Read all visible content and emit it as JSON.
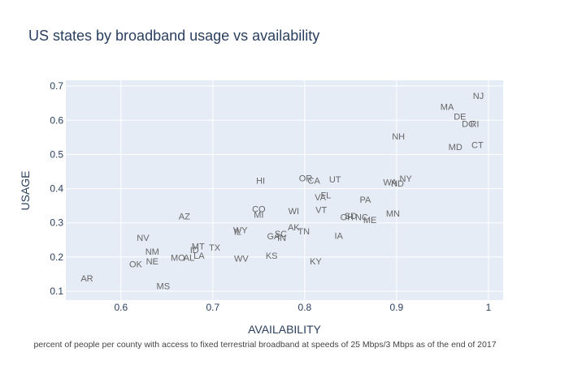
{
  "chart_data": {
    "type": "scatter",
    "title": "US states by broadband usage vs availability",
    "xlabel": "AVAILABILITY",
    "ylabel": "USAGE",
    "annotation": "percent of people per county with access to fixed terrestrial broadband at speeds of 25 Mbps/3 Mbps as of the end of 2017",
    "xlim": [
      0.54,
      1.016
    ],
    "ylim": [
      0.074,
      0.717
    ],
    "xticks": [
      0.6,
      0.7,
      0.8,
      0.9,
      1
    ],
    "xtick_labels": [
      "0.6",
      "0.7",
      "0.8",
      "0.9",
      "1"
    ],
    "yticks": [
      0.1,
      0.2,
      0.3,
      0.4,
      0.5,
      0.6,
      0.7
    ],
    "ytick_labels": [
      "0.1",
      "0.2",
      "0.3",
      "0.4",
      "0.5",
      "0.6",
      "0.7"
    ],
    "grid": true,
    "plot_background": "#e5ecf6",
    "label_color": "#666666",
    "points": [
      {
        "label": "NJ",
        "x": 0.989,
        "y": 0.672
      },
      {
        "label": "MA",
        "x": 0.955,
        "y": 0.64
      },
      {
        "label": "DE",
        "x": 0.969,
        "y": 0.612
      },
      {
        "label": "DC",
        "x": 0.978,
        "y": 0.59
      },
      {
        "label": "RI",
        "x": 0.985,
        "y": 0.59
      },
      {
        "label": "NH",
        "x": 0.902,
        "y": 0.553
      },
      {
        "label": "MD",
        "x": 0.964,
        "y": 0.522
      },
      {
        "label": "CT",
        "x": 0.988,
        "y": 0.528
      },
      {
        "label": "OR",
        "x": 0.801,
        "y": 0.431
      },
      {
        "label": "CA",
        "x": 0.81,
        "y": 0.424
      },
      {
        "label": "UT",
        "x": 0.833,
        "y": 0.428
      },
      {
        "label": "HI",
        "x": 0.752,
        "y": 0.424
      },
      {
        "label": "NY",
        "x": 0.91,
        "y": 0.43
      },
      {
        "label": "WA",
        "x": 0.893,
        "y": 0.419
      },
      {
        "label": "ND",
        "x": 0.901,
        "y": 0.416
      },
      {
        "label": "FL",
        "x": 0.823,
        "y": 0.381
      },
      {
        "label": "VA",
        "x": 0.817,
        "y": 0.375
      },
      {
        "label": "PA",
        "x": 0.866,
        "y": 0.368
      },
      {
        "label": "CO",
        "x": 0.75,
        "y": 0.341
      },
      {
        "label": "MI",
        "x": 0.75,
        "y": 0.324
      },
      {
        "label": "WI",
        "x": 0.788,
        "y": 0.335
      },
      {
        "label": "VT",
        "x": 0.818,
        "y": 0.339
      },
      {
        "label": "MN",
        "x": 0.896,
        "y": 0.328
      },
      {
        "label": "SD",
        "x": 0.85,
        "y": 0.321
      },
      {
        "label": "OH",
        "x": 0.846,
        "y": 0.317
      },
      {
        "label": "NC",
        "x": 0.862,
        "y": 0.317
      },
      {
        "label": "ME",
        "x": 0.871,
        "y": 0.309
      },
      {
        "label": "AZ",
        "x": 0.669,
        "y": 0.32
      },
      {
        "label": "AK",
        "x": 0.788,
        "y": 0.288
      },
      {
        "label": "TN",
        "x": 0.799,
        "y": 0.276
      },
      {
        "label": "WY",
        "x": 0.73,
        "y": 0.279
      },
      {
        "label": "IL",
        "x": 0.727,
        "y": 0.274
      },
      {
        "label": "SC",
        "x": 0.774,
        "y": 0.269
      },
      {
        "label": "GA",
        "x": 0.766,
        "y": 0.262
      },
      {
        "label": "IN",
        "x": 0.775,
        "y": 0.257
      },
      {
        "label": "IA",
        "x": 0.837,
        "y": 0.263
      },
      {
        "label": "NV",
        "x": 0.624,
        "y": 0.257
      },
      {
        "label": "MT",
        "x": 0.684,
        "y": 0.232
      },
      {
        "label": "TX",
        "x": 0.702,
        "y": 0.228
      },
      {
        "label": "ID",
        "x": 0.68,
        "y": 0.221
      },
      {
        "label": "LA",
        "x": 0.685,
        "y": 0.205
      },
      {
        "label": "AL",
        "x": 0.674,
        "y": 0.199
      },
      {
        "label": "MO",
        "x": 0.662,
        "y": 0.199
      },
      {
        "label": "NM",
        "x": 0.634,
        "y": 0.216
      },
      {
        "label": "NE",
        "x": 0.634,
        "y": 0.188
      },
      {
        "label": "OK",
        "x": 0.616,
        "y": 0.18
      },
      {
        "label": "WV",
        "x": 0.731,
        "y": 0.196
      },
      {
        "label": "KS",
        "x": 0.764,
        "y": 0.204
      },
      {
        "label": "KY",
        "x": 0.812,
        "y": 0.188
      },
      {
        "label": "AR",
        "x": 0.563,
        "y": 0.138
      },
      {
        "label": "MS",
        "x": 0.646,
        "y": 0.116
      }
    ]
  }
}
